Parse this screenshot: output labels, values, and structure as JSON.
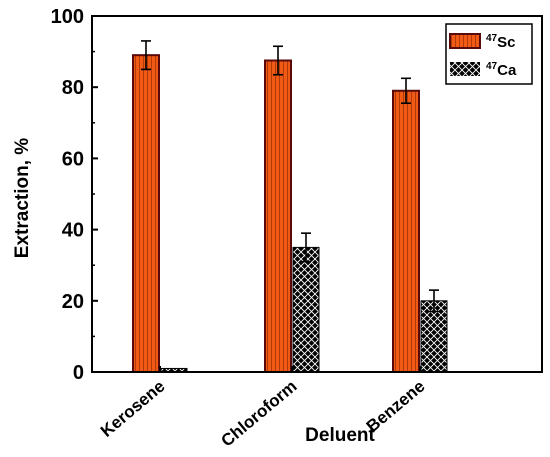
{
  "chart_data": {
    "type": "bar",
    "categories": [
      "Kerosene",
      "Chloroform",
      "Benzene"
    ],
    "series": [
      {
        "name": "47Sc",
        "isotope_mass": "47",
        "element": "Sc",
        "values": [
          89,
          87.5,
          79
        ],
        "errors": [
          4,
          4,
          3.5
        ],
        "color": "#f05a14",
        "stripe_color": "#b03a08",
        "edge_color": "#5a0a0a"
      },
      {
        "name": "47Ca",
        "isotope_mass": "47",
        "element": "Ca",
        "values": [
          1,
          35,
          20
        ],
        "errors": [
          0,
          4,
          3
        ],
        "color": "#000000",
        "hatch_color": "#ffffff"
      }
    ],
    "xlabel": "Deluent",
    "ylabel": "Extraction, %",
    "ylim": [
      0,
      100
    ],
    "yticks": [
      0,
      20,
      40,
      60,
      80,
      100
    ],
    "legend_position": "top-right",
    "grid": false
  }
}
